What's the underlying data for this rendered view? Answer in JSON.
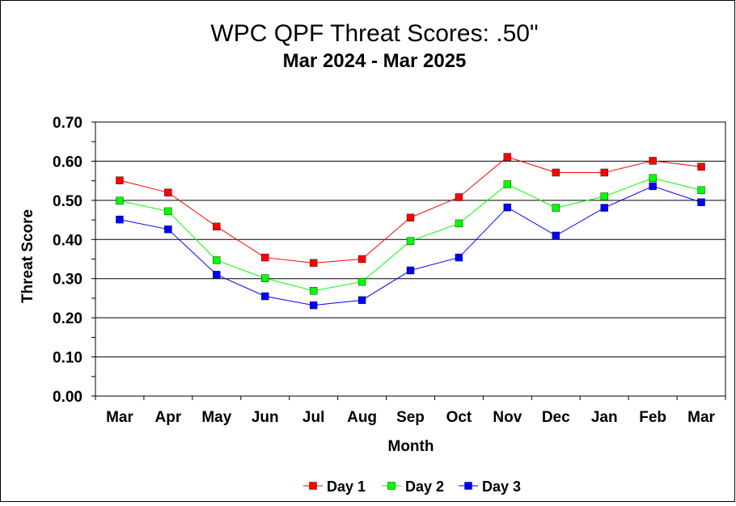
{
  "chart_data": {
    "type": "line",
    "title": "WPC QPF Threat Scores:  .50\"",
    "subtitle": "Mar 2024 - Mar 2025",
    "xlabel": "Month",
    "ylabel": "Threat Score",
    "ylim": [
      0,
      0.7
    ],
    "yticks": [
      "0.00",
      "0.10",
      "0.20",
      "0.30",
      "0.40",
      "0.50",
      "0.60",
      "0.70"
    ],
    "grid": true,
    "legend": "bottom",
    "categories": [
      "Mar",
      "Apr",
      "May",
      "Jun",
      "Jul",
      "Aug",
      "Sep",
      "Oct",
      "Nov",
      "Dec",
      "Jan",
      "Feb",
      "Mar"
    ],
    "series": [
      {
        "name": "Day 1",
        "color": "#ff0000",
        "values": [
          0.551,
          0.52,
          0.433,
          0.354,
          0.34,
          0.35,
          0.456,
          0.508,
          0.611,
          0.571,
          0.571,
          0.601,
          0.586
        ]
      },
      {
        "name": "Day 2",
        "color": "#00ff00",
        "values": [
          0.499,
          0.472,
          0.347,
          0.301,
          0.269,
          0.292,
          0.396,
          0.441,
          0.541,
          0.481,
          0.51,
          0.557,
          0.526
        ]
      },
      {
        "name": "Day 3",
        "color": "#0000ff",
        "values": [
          0.451,
          0.426,
          0.31,
          0.255,
          0.232,
          0.245,
          0.321,
          0.354,
          0.482,
          0.41,
          0.481,
          0.536,
          0.495
        ]
      }
    ]
  }
}
